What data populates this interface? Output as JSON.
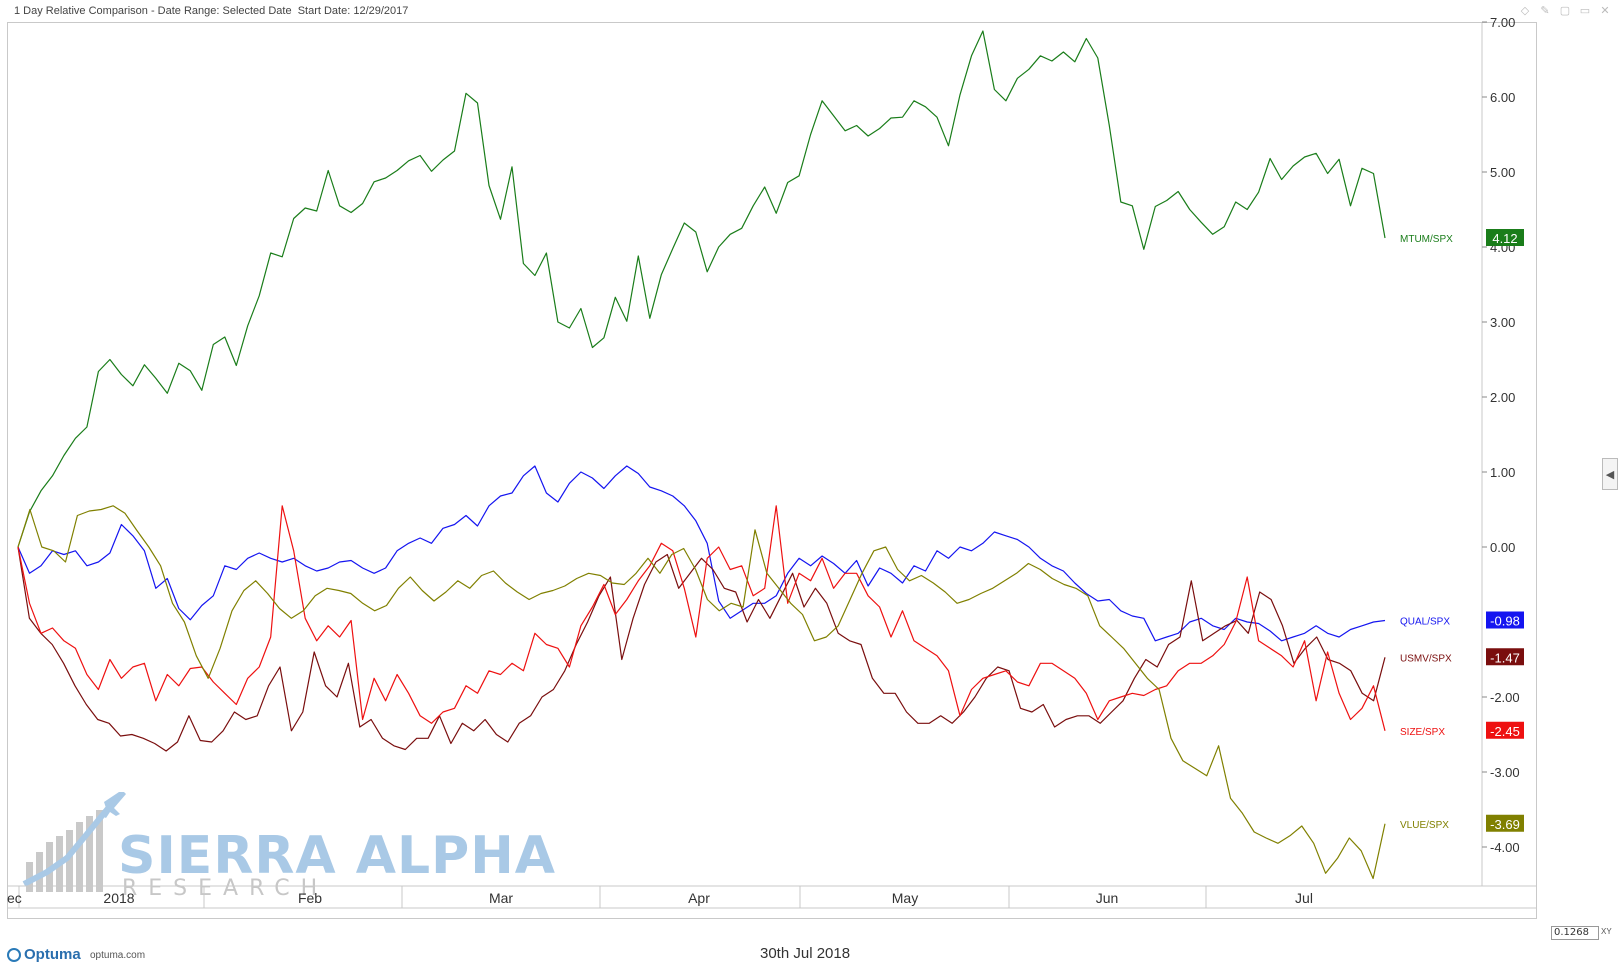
{
  "header": {
    "title": "1 Day Relative Comparison - Date Range: Selected Date  Start Date: 12/29/2017"
  },
  "toolbar": {
    "icons": [
      "diamond-icon",
      "pin-icon",
      "copy-icon",
      "window-icon",
      "close-icon"
    ]
  },
  "chart_data": {
    "type": "line",
    "x_labels": [
      "ec",
      "2018",
      "Feb",
      "Mar",
      "Apr",
      "May",
      "Jun",
      "Jul"
    ],
    "y_ticks": [
      7.0,
      6.0,
      5.0,
      4.0,
      3.0,
      2.0,
      1.0,
      0.0,
      -2.0,
      -3.0,
      -4.0
    ],
    "y_tick_labels": [
      "7.00",
      "6.00",
      "5.00",
      "4.00",
      "3.00",
      "2.00",
      "1.00",
      "0.00",
      "-2.00",
      "-3.00",
      "-4.00"
    ],
    "ylim": [
      -4.5,
      7.0
    ],
    "x_range": [
      "12/29/2017",
      "30th Jul 2018"
    ],
    "grid": false,
    "series": [
      {
        "name": "MTUM/SPX",
        "color": "#1a7d1a",
        "last": "4.12",
        "values": [
          0.0,
          0.47,
          0.75,
          0.95,
          1.22,
          1.45,
          1.6,
          2.34,
          2.5,
          2.3,
          2.15,
          2.43,
          2.25,
          2.05,
          2.45,
          2.35,
          2.09,
          2.7,
          2.8,
          2.42,
          2.95,
          3.35,
          3.92,
          3.87,
          4.38,
          4.52,
          4.48,
          5.02,
          4.55,
          4.46,
          4.58,
          4.87,
          4.92,
          5.02,
          5.15,
          5.22,
          5.01,
          5.16,
          5.28,
          6.05,
          5.92,
          4.82,
          4.37,
          5.07,
          3.78,
          3.62,
          3.92,
          3.0,
          2.92,
          3.18,
          2.66,
          2.79,
          3.33,
          3.01,
          3.88,
          3.05,
          3.63,
          3.98,
          4.32,
          4.2,
          3.67,
          4.0,
          4.17,
          4.25,
          4.55,
          4.8,
          4.45,
          4.86,
          4.95,
          5.5,
          5.95,
          5.75,
          5.55,
          5.62,
          5.48,
          5.58,
          5.72,
          5.73,
          5.95,
          5.87,
          5.73,
          5.35,
          6.03,
          6.55,
          6.88,
          6.1,
          5.95,
          6.25,
          6.37,
          6.55,
          6.48,
          6.6,
          6.47,
          6.78,
          6.52,
          5.62,
          4.6,
          4.55,
          3.97,
          4.54,
          4.62,
          4.74,
          4.5,
          4.33,
          4.17,
          4.27,
          4.6,
          4.5,
          4.73,
          5.18,
          4.9,
          5.08,
          5.2,
          5.25,
          4.98,
          5.17,
          4.55,
          5.05,
          4.98,
          4.12
        ]
      },
      {
        "name": "QUAL/SPX",
        "color": "#1515f0",
        "last": "-0.98",
        "values": [
          0.0,
          -0.35,
          -0.25,
          -0.05,
          -0.1,
          -0.05,
          -0.25,
          -0.2,
          -0.08,
          0.3,
          0.15,
          -0.05,
          -0.55,
          -0.42,
          -0.82,
          -0.97,
          -0.78,
          -0.65,
          -0.25,
          -0.3,
          -0.15,
          -0.08,
          -0.15,
          -0.2,
          -0.15,
          -0.25,
          -0.32,
          -0.28,
          -0.2,
          -0.18,
          -0.28,
          -0.35,
          -0.28,
          -0.05,
          0.05,
          0.12,
          0.05,
          0.25,
          0.3,
          0.42,
          0.28,
          0.55,
          0.68,
          0.72,
          0.95,
          1.08,
          0.72,
          0.6,
          0.85,
          1.0,
          0.92,
          0.78,
          0.95,
          1.08,
          0.98,
          0.8,
          0.75,
          0.68,
          0.55,
          0.35,
          0.05,
          -0.72,
          -0.95,
          -0.85,
          -0.75,
          -0.75,
          -0.65,
          -0.35,
          -0.15,
          -0.25,
          -0.12,
          -0.22,
          -0.35,
          -0.18,
          -0.52,
          -0.28,
          -0.35,
          -0.48,
          -0.25,
          -0.32,
          -0.05,
          -0.15,
          0.0,
          -0.05,
          0.05,
          0.2,
          0.15,
          0.1,
          0.0,
          -0.15,
          -0.25,
          -0.32,
          -0.48,
          -0.62,
          -0.72,
          -0.7,
          -0.85,
          -0.92,
          -0.95,
          -1.25,
          -1.2,
          -1.15,
          -1.0,
          -0.95,
          -1.05,
          -1.1,
          -0.95,
          -1.0,
          -1.02,
          -1.12,
          -1.25,
          -1.2,
          -1.15,
          -1.05,
          -1.15,
          -1.2,
          -1.1,
          -1.05,
          -1.0,
          -0.98
        ]
      },
      {
        "name": "USMV/SPX",
        "color": "#7a0e0e",
        "last": "-1.47",
        "values": [
          0.0,
          -0.95,
          -1.15,
          -1.3,
          -1.55,
          -1.85,
          -2.1,
          -2.3,
          -2.35,
          -2.52,
          -2.5,
          -2.55,
          -2.62,
          -2.72,
          -2.6,
          -2.25,
          -2.58,
          -2.6,
          -2.45,
          -2.2,
          -2.3,
          -2.25,
          -1.85,
          -1.6,
          -2.45,
          -2.2,
          -1.4,
          -1.85,
          -2.0,
          -1.55,
          -2.4,
          -2.3,
          -2.55,
          -2.65,
          -2.7,
          -2.55,
          -2.55,
          -2.25,
          -2.62,
          -2.35,
          -2.45,
          -2.3,
          -2.5,
          -2.6,
          -2.35,
          -2.25,
          -2.0,
          -1.9,
          -1.65,
          -1.3,
          -1.0,
          -0.65,
          -0.4,
          -1.5,
          -0.95,
          -0.5,
          -0.2,
          -0.1,
          -0.55,
          -0.35,
          -0.15,
          -0.3,
          -0.55,
          -0.6,
          -1.0,
          -0.7,
          -0.95,
          -0.65,
          -0.35,
          -0.8,
          -0.55,
          -0.75,
          -1.15,
          -1.25,
          -1.3,
          -1.75,
          -1.95,
          -1.95,
          -2.2,
          -2.35,
          -2.35,
          -2.25,
          -2.35,
          -2.2,
          -2.0,
          -1.75,
          -1.6,
          -1.65,
          -2.15,
          -2.2,
          -2.1,
          -2.4,
          -2.3,
          -2.25,
          -2.25,
          -2.35,
          -2.2,
          -2.05,
          -1.75,
          -1.5,
          -1.6,
          -1.3,
          -1.2,
          -0.45,
          -1.25,
          -1.15,
          -1.05,
          -0.98,
          -1.15,
          -0.6,
          -0.7,
          -1.05,
          -1.55,
          -1.35,
          -1.2,
          -1.5,
          -1.55,
          -1.65,
          -1.95,
          -2.05,
          -1.47
        ]
      },
      {
        "name": "SIZE/SPX",
        "color": "#ee1111",
        "last": "-2.45",
        "values": [
          0.0,
          -0.75,
          -1.15,
          -1.08,
          -1.25,
          -1.35,
          -1.7,
          -1.9,
          -1.5,
          -1.75,
          -1.6,
          -1.55,
          -2.05,
          -1.7,
          -1.85,
          -1.62,
          -1.6,
          -1.8,
          -1.95,
          -2.1,
          -1.75,
          -1.6,
          -1.2,
          0.55,
          -0.05,
          -0.95,
          -1.25,
          -1.05,
          -1.2,
          -0.98,
          -2.3,
          -1.75,
          -2.05,
          -1.7,
          -1.95,
          -2.25,
          -2.35,
          -2.2,
          -2.15,
          -1.85,
          -1.95,
          -1.65,
          -1.7,
          -1.55,
          -1.65,
          -1.15,
          -1.3,
          -1.35,
          -1.6,
          -1.05,
          -0.8,
          -0.5,
          -0.9,
          -0.7,
          -0.45,
          -0.25,
          0.05,
          -0.05,
          -0.55,
          -1.2,
          -0.15,
          0.0,
          -0.3,
          -0.25,
          -0.65,
          -0.55,
          0.55,
          -0.75,
          -0.35,
          -0.45,
          -0.15,
          -0.55,
          -0.35,
          -0.35,
          -0.65,
          -0.8,
          -1.2,
          -0.85,
          -1.25,
          -1.35,
          -1.45,
          -1.65,
          -2.25,
          -1.9,
          -1.75,
          -1.7,
          -1.65,
          -1.8,
          -1.85,
          -1.55,
          -1.55,
          -1.65,
          -1.75,
          -1.95,
          -2.3,
          -2.05,
          -2.0,
          -1.95,
          -1.98,
          -1.9,
          -1.85,
          -1.65,
          -1.55,
          -1.55,
          -1.45,
          -1.3,
          -1.0,
          -0.4,
          -1.25,
          -1.35,
          -1.45,
          -1.6,
          -1.25,
          -2.05,
          -1.4,
          -1.95,
          -2.3,
          -2.15,
          -1.85,
          -2.45
        ]
      },
      {
        "name": "VLUE/SPX",
        "color": "#808000",
        "last": "-3.69",
        "values": [
          0.0,
          0.5,
          0.0,
          -0.05,
          -0.2,
          0.42,
          0.48,
          0.5,
          0.55,
          0.45,
          0.22,
          0.0,
          -0.25,
          -0.75,
          -1.0,
          -1.45,
          -1.75,
          -1.35,
          -0.85,
          -0.58,
          -0.45,
          -0.62,
          -0.82,
          -0.95,
          -0.85,
          -0.65,
          -0.55,
          -0.58,
          -0.62,
          -0.75,
          -0.85,
          -0.78,
          -0.55,
          -0.4,
          -0.58,
          -0.72,
          -0.6,
          -0.45,
          -0.55,
          -0.38,
          -0.32,
          -0.48,
          -0.6,
          -0.7,
          -0.62,
          -0.58,
          -0.52,
          -0.42,
          -0.35,
          -0.38,
          -0.48,
          -0.5,
          -0.35,
          -0.15,
          -0.35,
          -0.1,
          -0.02,
          -0.3,
          -0.7,
          -0.85,
          -0.75,
          -0.8,
          0.23,
          -0.35,
          -0.55,
          -0.75,
          -0.9,
          -1.25,
          -1.2,
          -1.05,
          -0.7,
          -0.35,
          -0.05,
          0.0,
          -0.3,
          -0.45,
          -0.38,
          -0.48,
          -0.6,
          -0.75,
          -0.7,
          -0.62,
          -0.55,
          -0.45,
          -0.35,
          -0.22,
          -0.3,
          -0.42,
          -0.5,
          -0.55,
          -0.65,
          -1.05,
          -1.2,
          -1.35,
          -1.55,
          -1.75,
          -1.9,
          -2.55,
          -2.85,
          -2.95,
          -3.05,
          -2.65,
          -3.35,
          -3.55,
          -3.8,
          -3.88,
          -3.95,
          -3.85,
          -3.72,
          -3.95,
          -4.35,
          -4.15,
          -3.88,
          -4.05,
          -4.42,
          -3.69
        ]
      }
    ]
  },
  "watermark": {
    "title": "SIERRA ALPHA",
    "subtitle": "RESEARCH"
  },
  "footer": {
    "brand": "Optuma",
    "url": "optuma.com",
    "date": "30th Jul 2018",
    "xy_value": "0.1268",
    "xy_tag": "XY"
  }
}
